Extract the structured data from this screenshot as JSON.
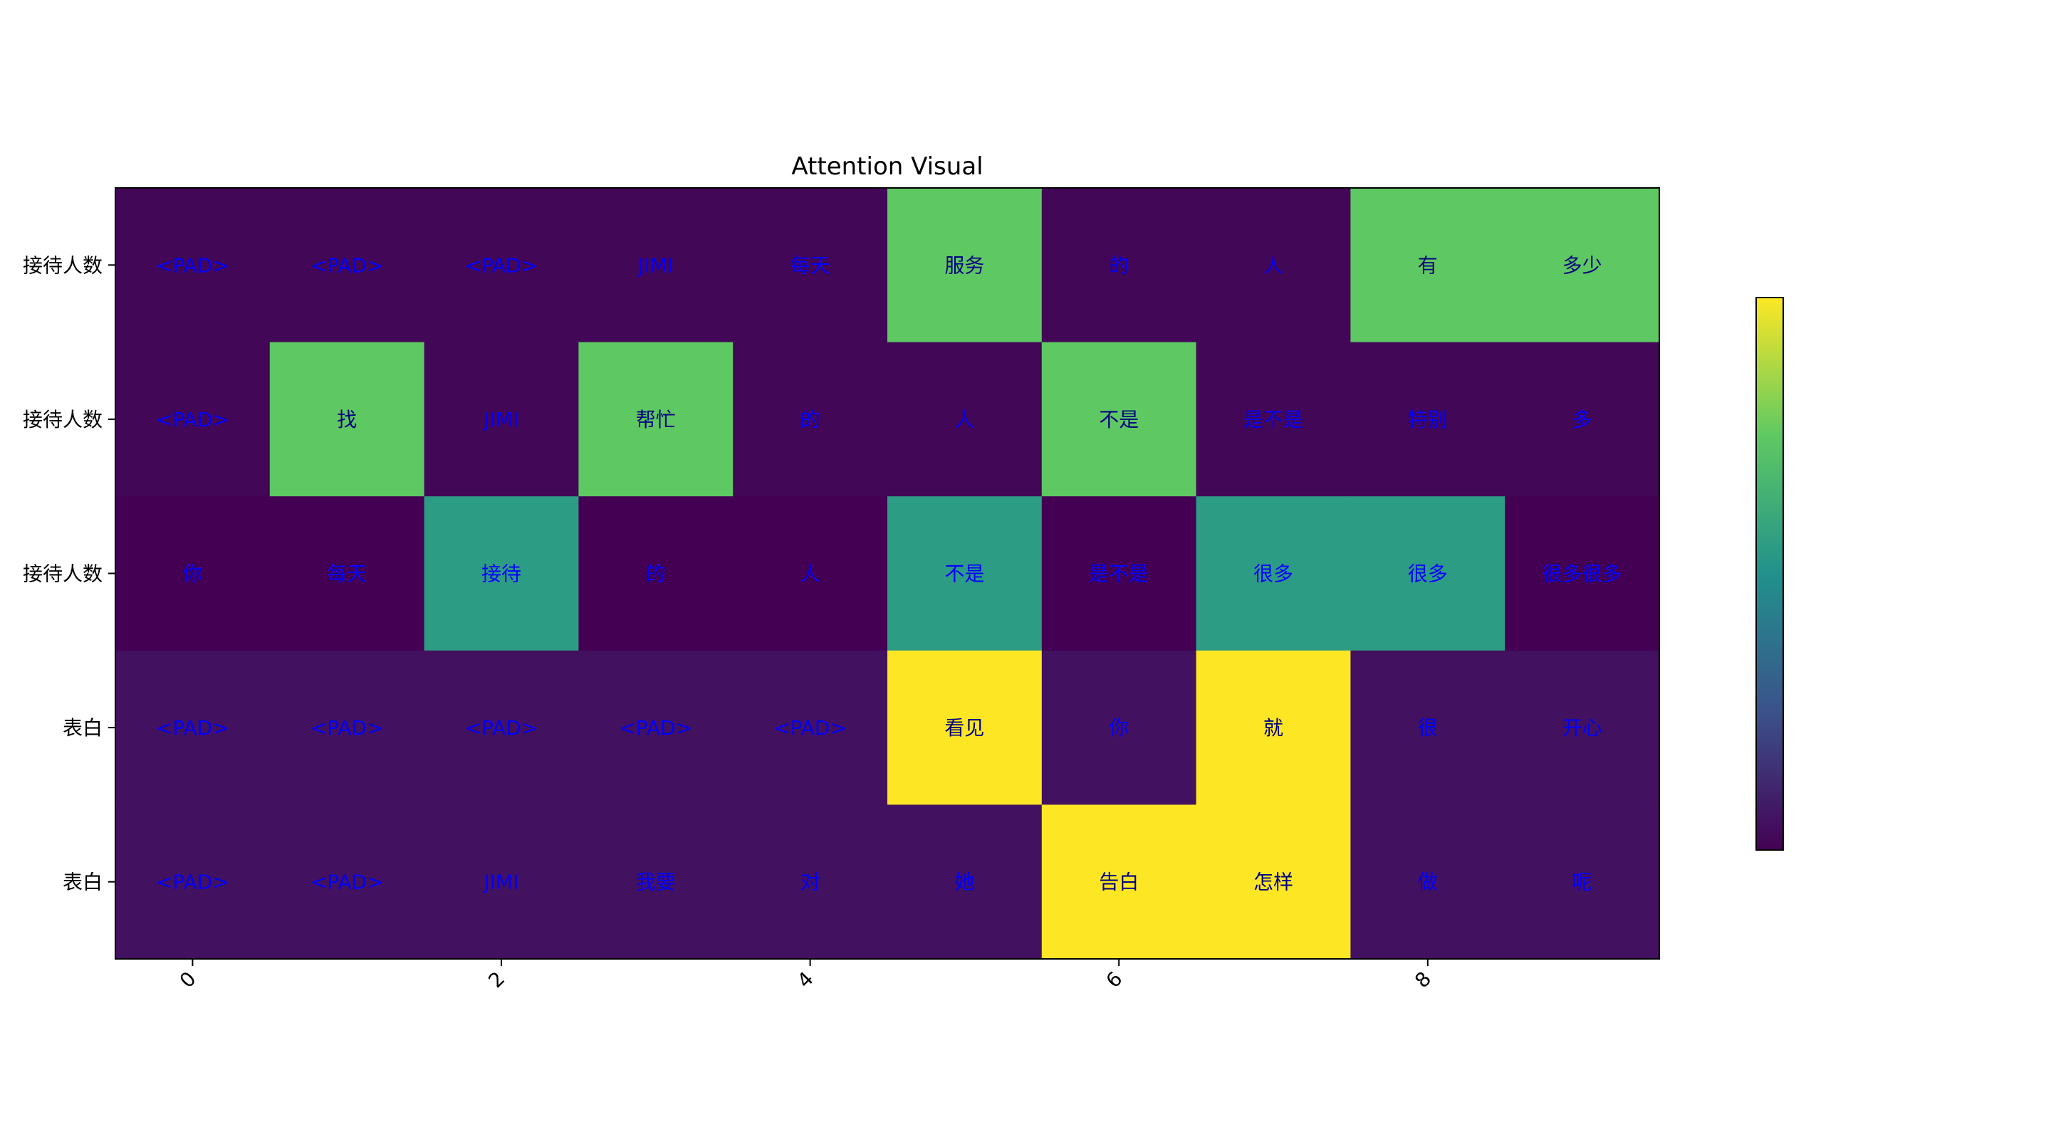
{
  "chart_data": {
    "type": "heatmap",
    "title": "Attention Visual",
    "row_labels": [
      "接待人数",
      "接待人数",
      "接待人数",
      "表白",
      "表白"
    ],
    "x_ticks": [
      "0",
      "2",
      "4",
      "6",
      "8"
    ],
    "tokens": [
      [
        "<PAD>",
        "<PAD>",
        "<PAD>",
        "JIMI",
        "每天",
        "服务",
        "的",
        "人",
        "有",
        "多少"
      ],
      [
        "<PAD>",
        "找",
        "JIMI",
        "帮忙",
        "的",
        "人",
        "不是",
        "是不是",
        "特别",
        "多"
      ],
      [
        "你",
        "每天",
        "接待",
        "的",
        "人",
        "不是",
        "是不是",
        "很多",
        "很多",
        "很多很多"
      ],
      [
        "<PAD>",
        "<PAD>",
        "<PAD>",
        "<PAD>",
        "<PAD>",
        "看见",
        "你",
        "就",
        "很",
        "开心"
      ],
      [
        "<PAD>",
        "<PAD>",
        "JIMI",
        "我要",
        "对",
        "她",
        "告白",
        "怎样",
        "做",
        "呢"
      ]
    ],
    "values": [
      [
        0.02,
        0.02,
        0.02,
        0.02,
        0.02,
        0.75,
        0.02,
        0.02,
        0.75,
        0.75
      ],
      [
        0.02,
        0.75,
        0.02,
        0.75,
        0.02,
        0.02,
        0.75,
        0.02,
        0.02,
        0.02
      ],
      [
        0.0,
        0.0,
        0.55,
        0.0,
        0.0,
        0.55,
        0.0,
        0.55,
        0.55,
        0.0
      ],
      [
        0.05,
        0.05,
        0.05,
        0.05,
        0.05,
        1.0,
        0.05,
        1.0,
        0.05,
        0.05
      ],
      [
        0.05,
        0.05,
        0.05,
        0.05,
        0.05,
        0.05,
        1.0,
        1.0,
        0.05,
        0.05
      ]
    ],
    "colormap": "viridis",
    "colorbar": true,
    "token_color": "#0000ff",
    "token_color_on_bright": "#000080"
  }
}
